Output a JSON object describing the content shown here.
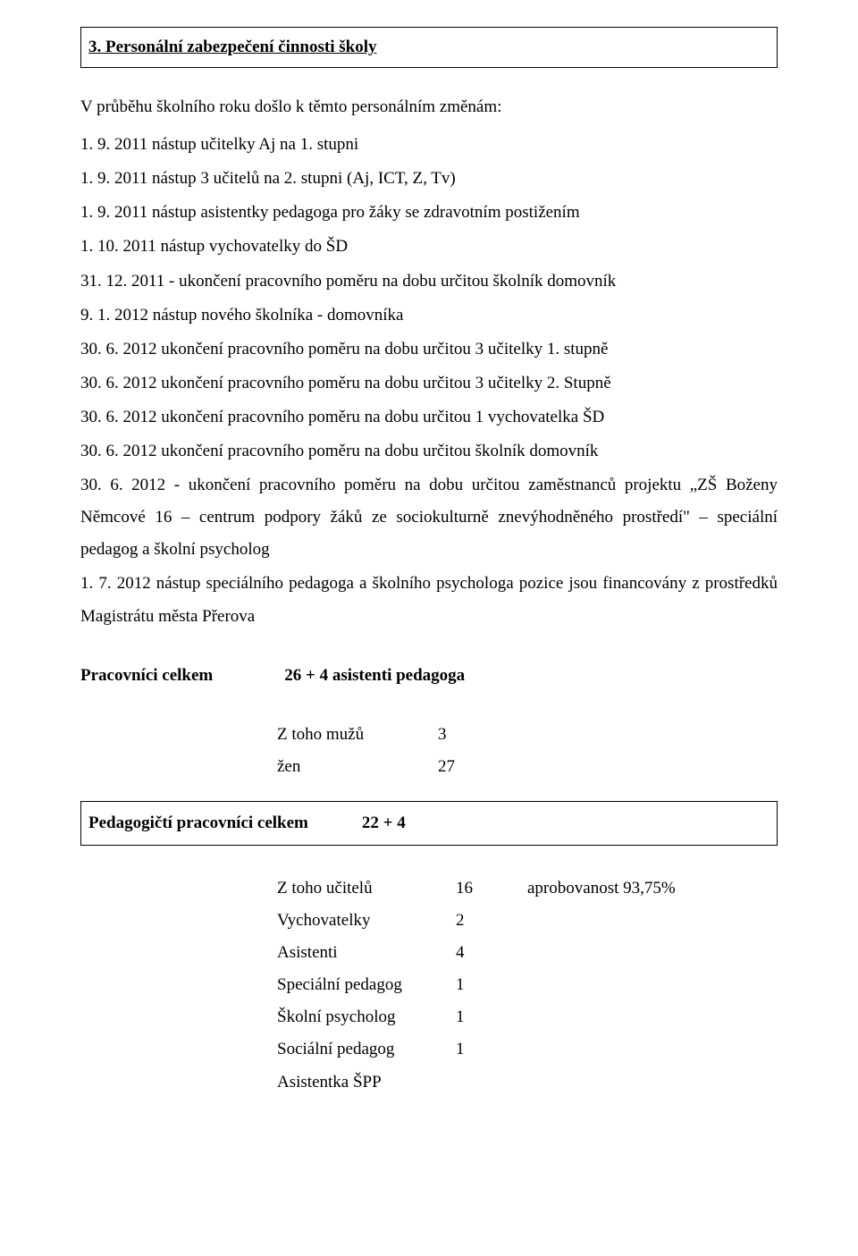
{
  "section": {
    "title": "3. Personální zabezpečení činnosti školy"
  },
  "intro": "V průběhu školního roku došlo k těmto personálním změnám:",
  "items": [
    "1. 9. 2011 nástup učitelky Aj na 1. stupni",
    "1. 9. 2011 nástup 3 učitelů na 2. stupni (Aj, ICT, Z, Tv)",
    "1. 9. 2011 nástup asistentky pedagoga pro žáky se zdravotním postižením",
    "1. 10. 2011 nástup vychovatelky do ŠD",
    "31. 12. 2011 - ukončení pracovního poměru na dobu určitou školník domovník",
    "9. 1. 2012 nástup nového školníka - domovníka",
    "30. 6. 2012 ukončení pracovního poměru na dobu určitou 3 učitelky 1. stupně",
    "30. 6. 2012 ukončení pracovního poměru na dobu určitou 3 učitelky 2. Stupně",
    "30. 6. 2012 ukončení pracovního poměru na dobu určitou 1 vychovatelka ŠD",
    "30. 6. 2012 ukončení pracovního poměru na dobu určitou školník domovník",
    "30. 6. 2012 - ukončení pracovního poměru na dobu určitou zaměstnanců projektu „ZŠ Boženy Němcové 16 – centrum podpory žáků ze sociokulturně znevýhodněného prostředí\" – speciální pedagog a školní psycholog",
    "1. 7. 2012 nástup speciálního pedagoga a školního psychologa pozice jsou financovány z prostředků Magistrátu města Přerova"
  ],
  "totals": {
    "label": "Pracovníci celkem",
    "value": "26 + 4 asistenti pedagoga"
  },
  "gender": {
    "male_label": "Z toho mužů",
    "male_value": "3",
    "female_label": "žen",
    "female_value": "27"
  },
  "ped": {
    "label": "Pedagogičtí pracovníci celkem",
    "value": "22 + 4"
  },
  "staff": [
    {
      "label": "Z toho učitelů",
      "value": "16",
      "extra": "aprobovanost  93,75%"
    },
    {
      "label": "Vychovatelky",
      "value": "2",
      "extra": ""
    },
    {
      "label": "Asistenti",
      "value": "4",
      "extra": ""
    },
    {
      "label": "Speciální pedagog",
      "value": "1",
      "extra": ""
    },
    {
      "label": "Školní psycholog",
      "value": "1",
      "extra": ""
    },
    {
      "label": "Sociální pedagog",
      "value": "1",
      "extra": ""
    },
    {
      "label": "Asistentka ŠPP",
      "value": "",
      "extra": ""
    }
  ]
}
